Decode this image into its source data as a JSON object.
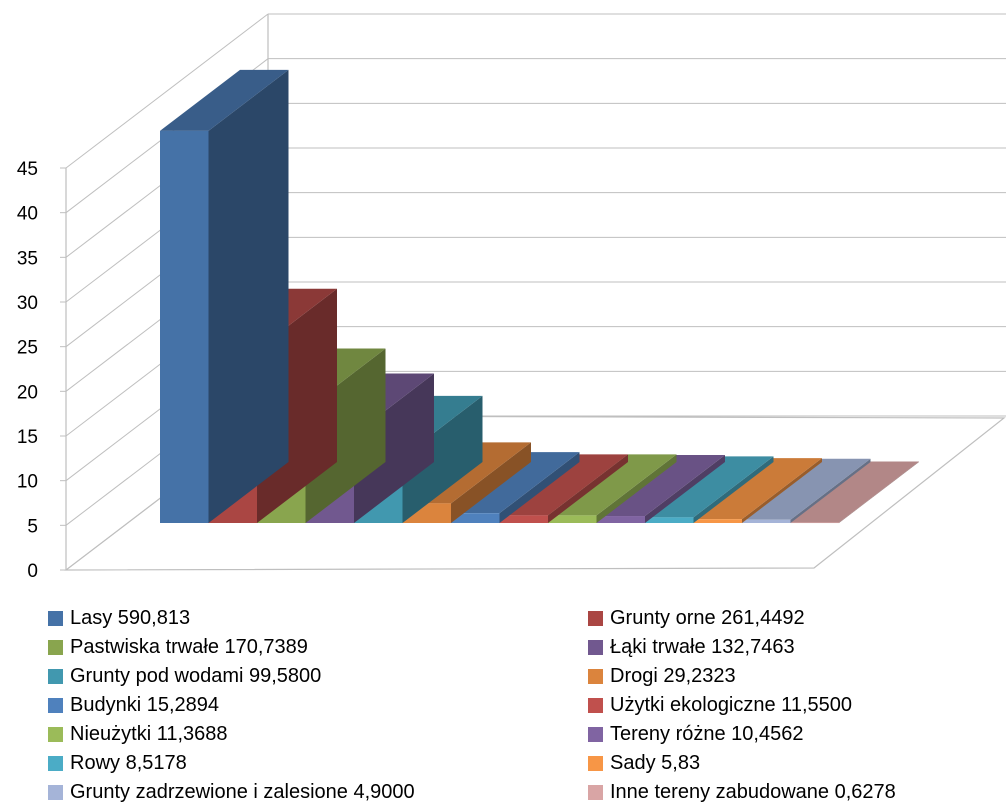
{
  "chart_data": {
    "type": "bar",
    "title": "",
    "xlabel": "",
    "ylabel": "",
    "ylim": [
      0,
      45
    ],
    "grid": true,
    "three_d": true,
    "legend_position": "bottom",
    "y_ticks": [
      "0",
      "5",
      "10",
      "15",
      "20",
      "25",
      "30",
      "35",
      "40",
      "45"
    ],
    "categories": [
      "Lasy 590,813",
      "Grunty orne 261,4492",
      "Pastwiska trwałe 170,7389",
      "Łąki trwałe 132,7463",
      "Grunty pod wodami 99,5800",
      "Drogi 29,2323",
      "Budynki 15,2894",
      "Użytki ekologiczne 11,5500",
      "Nieużytki 11,3688",
      "Tereny różne 10,4562",
      "Rowy 8,5178",
      "Sady 5,83",
      "Grunty zadrzewione i zalesione 4,9000",
      "Inne tereny zabudowane 0,6278"
    ],
    "values": [
      43.9,
      19.4,
      12.7,
      9.9,
      7.4,
      2.2,
      1.1,
      0.86,
      0.85,
      0.78,
      0.63,
      0.43,
      0.36,
      0.05
    ],
    "colors": [
      "#4572A7",
      "#AA4643",
      "#89A54E",
      "#71588F",
      "#4198AF",
      "#DB843D",
      "#4F81BD",
      "#C0504D",
      "#9BBB59",
      "#8064A2",
      "#4BACC6",
      "#F79646",
      "#A5B4D8",
      "#D9A5A5"
    ]
  }
}
